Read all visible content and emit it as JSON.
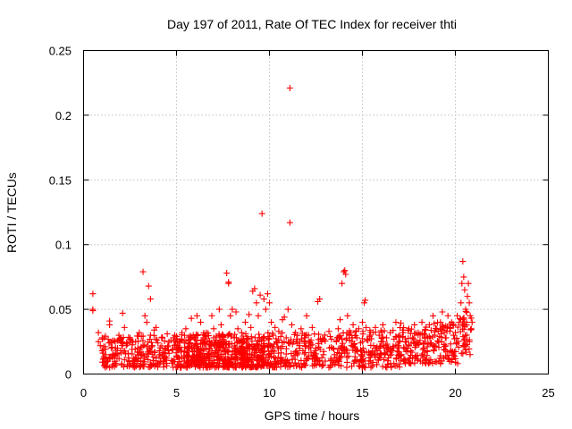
{
  "chart_data": {
    "type": "scatter",
    "title": "Day 197 of 2011, Rate Of TEC Index for receiver thti",
    "xlabel": "GPS time / hours",
    "ylabel": "ROTI / TECUs",
    "xlim": [
      0,
      25
    ],
    "ylim": [
      0,
      0.25
    ],
    "xticks": [
      0,
      5,
      10,
      15,
      20,
      25
    ],
    "xtick_labels": [
      "0",
      "5",
      "10",
      "15",
      "20",
      "25"
    ],
    "yticks": [
      0,
      0.05,
      0.1,
      0.15,
      0.2,
      0.25
    ],
    "ytick_labels": [
      "0",
      "0.05",
      "0.1",
      "0.15",
      "0.2",
      "0.25"
    ],
    "grid": true,
    "marker": "+",
    "color": "#ff0000",
    "series": [
      {
        "points": [
          [
            0.5,
            0.062
          ],
          [
            0.5,
            0.05
          ],
          [
            0.5,
            0.049
          ],
          [
            0.8,
            0.032
          ],
          [
            0.8,
            0.025
          ],
          [
            0.9,
            0.022
          ],
          [
            1.0,
            0.028
          ],
          [
            1.0,
            0.018
          ],
          [
            1.1,
            0.012
          ],
          [
            1.2,
            0.015
          ],
          [
            1.3,
            0.01
          ],
          [
            1.4,
            0.038
          ],
          [
            1.4,
            0.041
          ],
          [
            1.5,
            0.02
          ],
          [
            1.6,
            0.014
          ],
          [
            1.7,
            0.025
          ],
          [
            1.8,
            0.012
          ],
          [
            1.9,
            0.03
          ],
          [
            2.0,
            0.018
          ],
          [
            2.1,
            0.047
          ],
          [
            2.2,
            0.036
          ],
          [
            2.3,
            0.022
          ],
          [
            2.4,
            0.016
          ],
          [
            2.5,
            0.028
          ],
          [
            2.6,
            0.019
          ],
          [
            2.7,
            0.012
          ],
          [
            2.8,
            0.025
          ],
          [
            2.9,
            0.017
          ],
          [
            3.0,
            0.032
          ],
          [
            3.1,
            0.021
          ],
          [
            3.2,
            0.079
          ],
          [
            3.3,
            0.045
          ],
          [
            3.4,
            0.04
          ],
          [
            3.5,
            0.068
          ],
          [
            3.6,
            0.058
          ],
          [
            3.6,
            0.03
          ],
          [
            3.7,
            0.022
          ],
          [
            3.8,
            0.034
          ],
          [
            3.9,
            0.036
          ],
          [
            4.0,
            0.024
          ],
          [
            4.1,
            0.015
          ],
          [
            4.2,
            0.028
          ],
          [
            4.3,
            0.012
          ],
          [
            4.4,
            0.02
          ],
          [
            4.5,
            0.031
          ],
          [
            4.6,
            0.016
          ],
          [
            4.7,
            0.026
          ],
          [
            4.8,
            0.01
          ],
          [
            4.9,
            0.022
          ],
          [
            5.0,
            0.014
          ],
          [
            5.2,
            0.025
          ],
          [
            5.4,
            0.012
          ],
          [
            5.5,
            0.035
          ],
          [
            5.6,
            0.02
          ],
          [
            5.8,
            0.043
          ],
          [
            6.0,
            0.028
          ],
          [
            6.1,
            0.045
          ],
          [
            6.2,
            0.018
          ],
          [
            6.3,
            0.04
          ],
          [
            6.5,
            0.024
          ],
          [
            6.6,
            0.032
          ],
          [
            6.8,
            0.015
          ],
          [
            6.9,
            0.045
          ],
          [
            7.0,
            0.035
          ],
          [
            7.2,
            0.022
          ],
          [
            7.3,
            0.05
          ],
          [
            7.4,
            0.038
          ],
          [
            7.5,
            0.03
          ],
          [
            7.6,
            0.018
          ],
          [
            7.7,
            0.078
          ],
          [
            7.8,
            0.071
          ],
          [
            7.8,
            0.07
          ],
          [
            7.9,
            0.045
          ],
          [
            8.0,
            0.05
          ],
          [
            8.1,
            0.028
          ],
          [
            8.2,
            0.048
          ],
          [
            8.3,
            0.035
          ],
          [
            8.4,
            0.02
          ],
          [
            8.5,
            0.032
          ],
          [
            8.6,
            0.025
          ],
          [
            8.7,
            0.04
          ],
          [
            8.8,
            0.015
          ],
          [
            8.9,
            0.046
          ],
          [
            9.0,
            0.036
          ],
          [
            9.1,
            0.064
          ],
          [
            9.2,
            0.066
          ],
          [
            9.3,
            0.055
          ],
          [
            9.4,
            0.045
          ],
          [
            9.5,
            0.061
          ],
          [
            9.6,
            0.124
          ],
          [
            9.7,
            0.058
          ],
          [
            9.8,
            0.05
          ],
          [
            9.9,
            0.062
          ],
          [
            10.0,
            0.055
          ],
          [
            10.1,
            0.04
          ],
          [
            10.2,
            0.03
          ],
          [
            10.3,
            0.036
          ],
          [
            10.4,
            0.025
          ],
          [
            10.5,
            0.033
          ],
          [
            10.6,
            0.02
          ],
          [
            10.7,
            0.042
          ],
          [
            10.8,
            0.044
          ],
          [
            10.9,
            0.028
          ],
          [
            11.0,
            0.05
          ],
          [
            11.1,
            0.221
          ],
          [
            11.1,
            0.117
          ],
          [
            11.2,
            0.038
          ],
          [
            11.3,
            0.025
          ],
          [
            11.4,
            0.032
          ],
          [
            11.5,
            0.015
          ],
          [
            11.6,
            0.022
          ],
          [
            11.7,
            0.035
          ],
          [
            11.8,
            0.018
          ],
          [
            11.9,
            0.028
          ],
          [
            12.0,
            0.045
          ],
          [
            12.1,
            0.03
          ],
          [
            12.2,
            0.022
          ],
          [
            12.3,
            0.036
          ],
          [
            12.4,
            0.012
          ],
          [
            12.5,
            0.02
          ],
          [
            12.6,
            0.056
          ],
          [
            12.7,
            0.058
          ],
          [
            12.8,
            0.025
          ],
          [
            12.9,
            0.015
          ],
          [
            13.0,
            0.01
          ],
          [
            13.2,
            0.005
          ],
          [
            13.3,
            0.012
          ],
          [
            13.4,
            0.02
          ],
          [
            13.5,
            0.015
          ],
          [
            13.6,
            0.025
          ],
          [
            13.7,
            0.035
          ],
          [
            13.8,
            0.042
          ],
          [
            13.9,
            0.07
          ],
          [
            14.0,
            0.079
          ],
          [
            14.05,
            0.08
          ],
          [
            14.1,
            0.077
          ],
          [
            14.2,
            0.045
          ],
          [
            14.3,
            0.03
          ],
          [
            14.4,
            0.022
          ],
          [
            14.5,
            0.038
          ],
          [
            14.6,
            0.018
          ],
          [
            14.7,
            0.028
          ],
          [
            14.8,
            0.035
          ],
          [
            14.9,
            0.024
          ],
          [
            15.0,
            0.04
          ],
          [
            15.1,
            0.055
          ],
          [
            15.15,
            0.057
          ],
          [
            15.2,
            0.036
          ],
          [
            15.3,
            0.026
          ],
          [
            15.4,
            0.03
          ],
          [
            15.5,
            0.015
          ],
          [
            15.6,
            0.022
          ],
          [
            15.7,
            0.036
          ],
          [
            15.8,
            0.018
          ],
          [
            15.9,
            0.03
          ],
          [
            16.0,
            0.025
          ],
          [
            16.1,
            0.038
          ],
          [
            16.2,
            0.015
          ],
          [
            16.3,
            0.028
          ],
          [
            16.4,
            0.02
          ],
          [
            16.5,
            0.032
          ],
          [
            16.6,
            0.018
          ],
          [
            16.7,
            0.027
          ],
          [
            16.8,
            0.04
          ],
          [
            16.9,
            0.022
          ],
          [
            17.0,
            0.03
          ],
          [
            17.1,
            0.015
          ],
          [
            17.2,
            0.032
          ],
          [
            17.3,
            0.025
          ],
          [
            17.4,
            0.02
          ],
          [
            17.5,
            0.035
          ],
          [
            17.6,
            0.018
          ],
          [
            17.7,
            0.028
          ],
          [
            17.8,
            0.038
          ],
          [
            17.9,
            0.022
          ],
          [
            18.0,
            0.032
          ],
          [
            18.1,
            0.026
          ],
          [
            18.2,
            0.04
          ],
          [
            18.3,
            0.02
          ],
          [
            18.4,
            0.034
          ],
          [
            18.5,
            0.028
          ],
          [
            18.6,
            0.038
          ],
          [
            18.7,
            0.024
          ],
          [
            18.8,
            0.045
          ],
          [
            18.9,
            0.03
          ],
          [
            19.0,
            0.035
          ],
          [
            19.1,
            0.025
          ],
          [
            19.2,
            0.04
          ],
          [
            19.3,
            0.048
          ],
          [
            19.4,
            0.032
          ],
          [
            19.5,
            0.028
          ],
          [
            19.6,
            0.045
          ],
          [
            19.7,
            0.036
          ],
          [
            19.8,
            0.04
          ],
          [
            19.9,
            0.03
          ],
          [
            20.0,
            0.032
          ],
          [
            20.1,
            0.045
          ],
          [
            20.2,
            0.04
          ],
          [
            20.3,
            0.055
          ],
          [
            20.35,
            0.07
          ],
          [
            20.4,
            0.087
          ],
          [
            20.45,
            0.075
          ],
          [
            20.5,
            0.065
          ],
          [
            20.55,
            0.05
          ],
          [
            20.6,
            0.04
          ],
          [
            20.65,
            0.06
          ],
          [
            20.7,
            0.07
          ],
          [
            20.75,
            0.055
          ],
          [
            20.8,
            0.045
          ],
          [
            20.85,
            0.035
          ],
          [
            20.9,
            0.04
          ]
        ]
      }
    ],
    "dense_band": [
      [
        1.0,
        10.0,
        0.005,
        0.03
      ],
      [
        5.0,
        13.0,
        0.005,
        0.032
      ],
      [
        13.2,
        17.0,
        0.005,
        0.034
      ],
      [
        17.0,
        20.2,
        0.008,
        0.04
      ],
      [
        20.2,
        20.9,
        0.015,
        0.05
      ]
    ]
  }
}
